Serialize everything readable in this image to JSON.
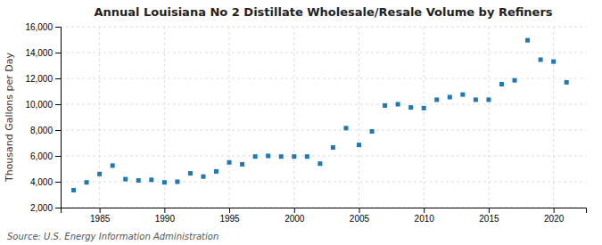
{
  "chart_data": {
    "type": "scatter",
    "title": "Annual Louisiana No 2 Distillate Wholesale/Resale Volume by Refiners",
    "ylabel": "Thousand Gallons per Day",
    "annotations": [
      "Source: U.S. Energy Information Administration"
    ],
    "x": [
      1983,
      1984,
      1985,
      1986,
      1987,
      1988,
      1989,
      1990,
      1991,
      1992,
      1993,
      1994,
      1995,
      1996,
      1997,
      1998,
      1999,
      2000,
      2001,
      2002,
      2003,
      2004,
      2005,
      2006,
      2007,
      2008,
      2009,
      2010,
      2011,
      2012,
      2013,
      2014,
      2015,
      2016,
      2017,
      2018,
      2019,
      2020,
      2021
    ],
    "values": [
      3350,
      3950,
      4600,
      5250,
      4200,
      4100,
      4150,
      3950,
      4000,
      4650,
      4400,
      4800,
      5500,
      5350,
      5950,
      6000,
      5950,
      5950,
      5950,
      5400,
      6650,
      8150,
      6850,
      7900,
      9900,
      10000,
      9750,
      9700,
      10350,
      10550,
      10750,
      10350,
      10350,
      11550,
      11850,
      14950,
      13450,
      13300,
      11700
    ],
    "marker": "square",
    "xlim": [
      1982,
      2022.5
    ],
    "xticks": [
      1985,
      1990,
      1995,
      2000,
      2005,
      2010,
      2015,
      2020
    ],
    "ylim": [
      2000,
      16000
    ],
    "yticks": [
      {
        "value": 2000,
        "label": "2,000"
      },
      {
        "value": 4000,
        "label": "4,000"
      },
      {
        "value": 6000,
        "label": "6,000"
      },
      {
        "value": 8000,
        "label": "8,000"
      },
      {
        "value": 10000,
        "label": "10,000"
      },
      {
        "value": 12000,
        "label": "12,000"
      },
      {
        "value": 14000,
        "label": "14,000"
      },
      {
        "value": 16000,
        "label": "16,000"
      }
    ],
    "grid": true
  }
}
